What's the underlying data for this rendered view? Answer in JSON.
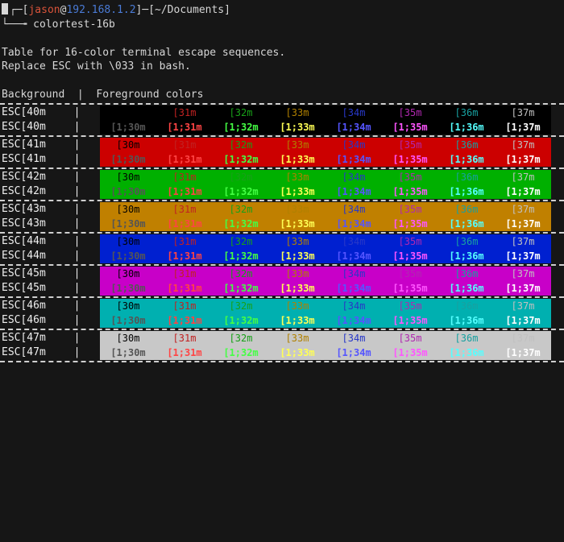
{
  "prompt": {
    "open": "┌─[",
    "user": "jason",
    "at": "@",
    "host": "192.168.1.2",
    "mid": "]─[",
    "path": "~/Documents",
    "close": "]",
    "arrow": "└──╼ ",
    "command": "colortest-16b"
  },
  "intro": {
    "l1": "Table for 16-color terminal escape sequences.",
    "l2": "Replace ESC with \\033 in bash.",
    "l3": "Background  |  Foreground colors"
  },
  "fg_normal": [
    "[30m",
    "[31m",
    "[32m",
    "[33m",
    "[34m",
    "[35m",
    "[36m",
    "[37m"
  ],
  "fg_bold": [
    "[1;30m",
    "[1;31m",
    "[1;32m",
    "[1;33m",
    "[1;34m",
    "[1;35m",
    "[1;36m",
    "[1;37m"
  ],
  "fg_colors_normal": [
    "#000000",
    "#c02222",
    "#18a018",
    "#b08000",
    "#2838c8",
    "#b028b0",
    "#18a0a0",
    "#c0c0c0"
  ],
  "fg_colors_bold": [
    "#555555",
    "#ff4444",
    "#44ff44",
    "#ffff55",
    "#5555ff",
    "#ff55ff",
    "#55ffff",
    "#ffffff"
  ],
  "blocks": [
    {
      "label": "ESC[40m",
      "bg": "#000000",
      "first_row_hide0": true
    },
    {
      "label": "ESC[41m",
      "bg": "#cc0000"
    },
    {
      "label": "ESC[42m",
      "bg": "#00b000"
    },
    {
      "label": "ESC[43m",
      "bg": "#c08000"
    },
    {
      "label": "ESC[44m",
      "bg": "#0020d0"
    },
    {
      "label": "ESC[45m",
      "bg": "#c800c8"
    },
    {
      "label": "ESC[46m",
      "bg": "#00b0b0"
    },
    {
      "label": "ESC[47m",
      "bg": "#c8c8c8"
    }
  ]
}
